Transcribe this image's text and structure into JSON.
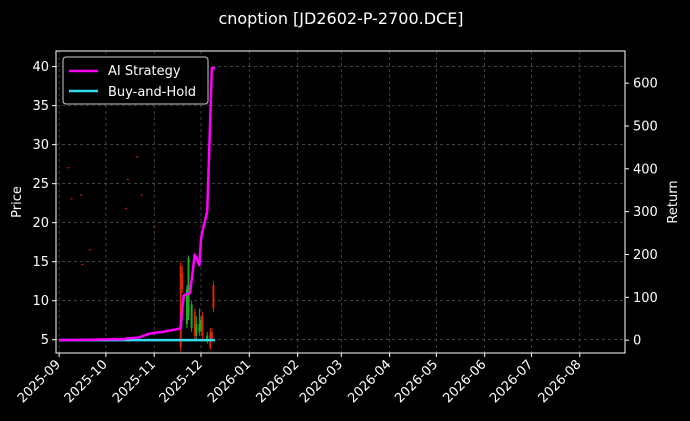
{
  "chart_data": {
    "type": "line",
    "title": "cnoption [JD2602-P-2700.DCE]",
    "xlabel": "",
    "ylabel_left": "Price",
    "ylabel_right": "Return",
    "x_ticks": [
      "2025-09",
      "2025-10",
      "2025-11",
      "2025-12",
      "2026-01",
      "2026-02",
      "2026-03",
      "2026-04",
      "2026-05",
      "2026-06",
      "2026-07",
      "2026-08"
    ],
    "y_left_ticks": [
      5,
      10,
      15,
      20,
      25,
      30,
      35,
      40
    ],
    "y_right_ticks": [
      0,
      100,
      200,
      300,
      400,
      500,
      600
    ],
    "x_range": [
      "2025-08-30",
      "2026-08-30"
    ],
    "y_left_range": [
      3.3,
      42
    ],
    "y_right_range": [
      -30,
      675
    ],
    "grid": true,
    "legend_position": "top-left",
    "series": [
      {
        "name": "AI Strategy",
        "color": "#ff00ff",
        "axis": "right",
        "points": [
          [
            "2025-09-01",
            0
          ],
          [
            "2025-09-22",
            1
          ],
          [
            "2025-10-05",
            2
          ],
          [
            "2025-10-13",
            2
          ],
          [
            "2025-10-14",
            4
          ],
          [
            "2025-10-22",
            6
          ],
          [
            "2025-10-25",
            10
          ],
          [
            "2025-10-28",
            14
          ],
          [
            "2025-11-01",
            17
          ],
          [
            "2025-11-06",
            19
          ],
          [
            "2025-11-10",
            22
          ],
          [
            "2025-11-15",
            25
          ],
          [
            "2025-11-18",
            28
          ],
          [
            "2025-11-19",
            75
          ],
          [
            "2025-11-20",
            105
          ],
          [
            "2025-11-24",
            110
          ],
          [
            "2025-11-27",
            200
          ],
          [
            "2025-11-30",
            175
          ],
          [
            "2025-12-01",
            235
          ],
          [
            "2025-12-02",
            255
          ],
          [
            "2025-12-05",
            300
          ],
          [
            "2025-12-08",
            635
          ],
          [
            "2025-12-10",
            635
          ]
        ]
      },
      {
        "name": "Buy-and-Hold",
        "color": "#33ddee",
        "axis": "right",
        "points": [
          [
            "2025-09-01",
            0
          ],
          [
            "2025-12-10",
            0
          ]
        ]
      }
    ],
    "candles": [
      {
        "date": "2025-09-07",
        "open": 27.0,
        "close": 27.1,
        "high": 27.1,
        "low": 27.0,
        "color": "red"
      },
      {
        "date": "2025-09-09",
        "open": 23.0,
        "close": 23.1,
        "high": 23.1,
        "low": 23.0,
        "color": "red"
      },
      {
        "date": "2025-09-15",
        "open": 23.5,
        "close": 23.6,
        "high": 23.6,
        "low": 23.5,
        "color": "red"
      },
      {
        "date": "2025-09-16",
        "open": 14.6,
        "close": 14.7,
        "high": 14.7,
        "low": 14.6,
        "color": "red"
      },
      {
        "date": "2025-09-21",
        "open": 16.5,
        "close": 16.6,
        "high": 16.6,
        "low": 16.5,
        "color": "red"
      },
      {
        "date": "2025-10-15",
        "open": 25.5,
        "close": 25.6,
        "high": 25.6,
        "low": 25.5,
        "color": "red"
      },
      {
        "date": "2025-10-14",
        "open": 21.8,
        "close": 21.9,
        "high": 21.9,
        "low": 21.8,
        "color": "red"
      },
      {
        "date": "2025-10-21",
        "open": 28.4,
        "close": 28.5,
        "high": 28.5,
        "low": 28.4,
        "color": "red"
      },
      {
        "date": "2025-10-24",
        "open": 23.5,
        "close": 23.6,
        "high": 23.6,
        "low": 23.5,
        "color": "red"
      },
      {
        "date": "2025-11-01",
        "open": 19.4,
        "close": 19.5,
        "high": 19.5,
        "low": 19.4,
        "color": "red"
      },
      {
        "date": "2025-11-18",
        "open": 14.5,
        "close": 4.0,
        "high": 15.0,
        "low": 3.5,
        "color": "red"
      },
      {
        "date": "2025-11-19",
        "open": 13.5,
        "close": 11.5,
        "high": 14.5,
        "low": 11.0,
        "color": "red"
      },
      {
        "date": "2025-11-22",
        "open": 7.0,
        "close": 11.5,
        "high": 12.0,
        "low": 6.5,
        "color": "green"
      },
      {
        "date": "2025-11-23",
        "open": 8.0,
        "close": 15.5,
        "high": 15.8,
        "low": 7.5,
        "color": "green"
      },
      {
        "date": "2025-11-25",
        "open": 6.5,
        "close": 9.5,
        "high": 10.0,
        "low": 6.0,
        "color": "green"
      },
      {
        "date": "2025-11-27",
        "open": 8.5,
        "close": 5.5,
        "high": 9.0,
        "low": 5.0,
        "color": "red"
      },
      {
        "date": "2025-11-28",
        "open": 5.5,
        "close": 7.0,
        "high": 8.0,
        "low": 5.0,
        "color": "green"
      },
      {
        "date": "2025-11-30",
        "open": 7.0,
        "close": 6.0,
        "high": 9.0,
        "low": 5.5,
        "color": "green"
      },
      {
        "date": "2025-12-01",
        "open": 7.5,
        "close": 6.5,
        "high": 8.0,
        "low": 6.0,
        "color": "green"
      },
      {
        "date": "2025-12-02",
        "open": 8.0,
        "close": 5.5,
        "high": 8.5,
        "low": 5.0,
        "color": "red"
      },
      {
        "date": "2025-12-05",
        "open": 5.0,
        "close": 5.5,
        "high": 6.0,
        "low": 4.5,
        "color": "green"
      },
      {
        "date": "2025-12-07",
        "open": 6.0,
        "close": 4.0,
        "high": 6.5,
        "low": 3.7,
        "color": "red"
      },
      {
        "date": "2025-12-08",
        "open": 5.0,
        "close": 6.0,
        "high": 6.5,
        "low": 4.8,
        "color": "red"
      },
      {
        "date": "2025-12-09",
        "open": 12.0,
        "close": 9.0,
        "high": 12.5,
        "low": 8.5,
        "color": "red"
      }
    ]
  }
}
